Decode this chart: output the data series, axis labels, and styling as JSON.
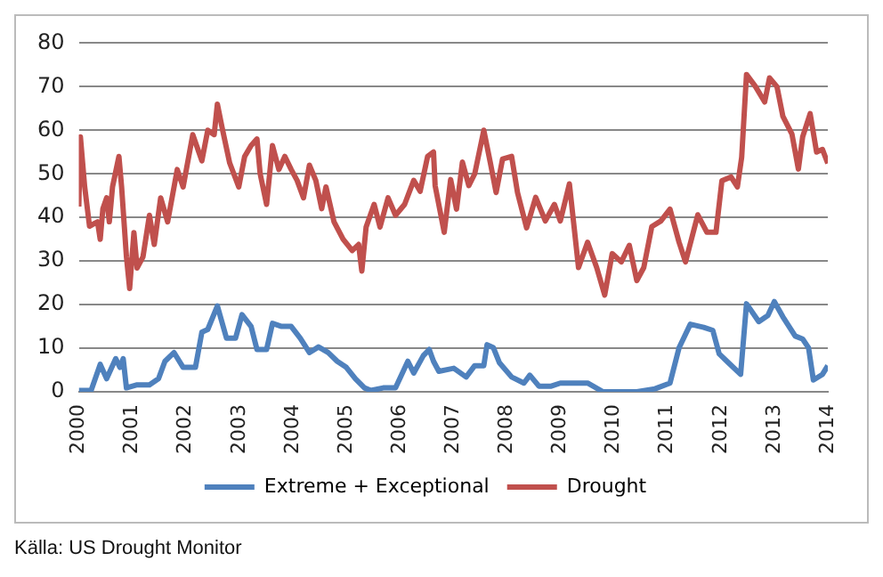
{
  "chart_data": {
    "type": "line",
    "annotations": [
      "Källa: US Drought Monitor"
    ],
    "xlim": [
      2000,
      2014
    ],
    "xticks": [
      2000,
      2001,
      2002,
      2003,
      2004,
      2005,
      2006,
      2007,
      2008,
      2009,
      2010,
      2011,
      2012,
      2013,
      2014
    ],
    "ylim": [
      0,
      80
    ],
    "yticks": [
      0,
      10,
      20,
      30,
      40,
      50,
      60,
      70,
      80
    ],
    "grid": "y",
    "legend": "bottom",
    "marker": "none",
    "line_style": "solid",
    "series": [
      {
        "name": "Extreme + Exceptional",
        "color": "#4f81bd",
        "x": [
          2000.0,
          2000.23,
          2000.4,
          2000.52,
          2000.69,
          2000.77,
          2000.83,
          2000.89,
          2001.09,
          2001.32,
          2001.49,
          2001.61,
          2001.78,
          2001.95,
          2002.18,
          2002.3,
          2002.41,
          2002.59,
          2002.76,
          2002.93,
          2003.05,
          2003.22,
          2003.33,
          2003.51,
          2003.62,
          2003.79,
          2003.97,
          2004.14,
          2004.31,
          2004.48,
          2004.66,
          2004.83,
          2005.0,
          2005.17,
          2005.34,
          2005.46,
          2005.69,
          2005.92,
          2006.15,
          2006.26,
          2006.44,
          2006.55,
          2006.63,
          2006.73,
          2007.01,
          2007.24,
          2007.4,
          2007.57,
          2007.63,
          2007.75,
          2007.86,
          2008.09,
          2008.32,
          2008.43,
          2008.6,
          2008.83,
          2009.0,
          2009.29,
          2009.51,
          2009.8,
          2010.43,
          2010.77,
          2011.05,
          2011.22,
          2011.43,
          2011.68,
          2011.85,
          2011.97,
          2012.14,
          2012.37,
          2012.48,
          2012.71,
          2012.88,
          2013.0,
          2013.16,
          2013.39,
          2013.53,
          2013.64,
          2013.73,
          2013.9,
          2014.0
        ],
        "values": [
          0.3,
          0.3,
          6.3,
          3,
          7.6,
          5.6,
          7.6,
          0.9,
          1.6,
          1.6,
          3,
          7,
          9,
          5.6,
          5.6,
          13.7,
          14.3,
          19.7,
          12.3,
          12.3,
          17.7,
          15,
          9.7,
          9.7,
          15.7,
          15,
          15,
          12.3,
          9,
          10.3,
          9,
          7,
          5.6,
          3,
          0.9,
          0.3,
          0.9,
          0.9,
          7,
          4.3,
          8.3,
          9.7,
          7,
          4.7,
          5.4,
          3.4,
          6,
          6,
          10.8,
          10.1,
          6.7,
          3.4,
          2,
          3.8,
          1.3,
          1.3,
          2,
          2,
          2,
          0,
          0,
          0.7,
          2,
          10.1,
          15.5,
          14.8,
          14.1,
          8.7,
          6.7,
          4,
          20.2,
          16.1,
          17.5,
          20.7,
          17.2,
          12.8,
          12.1,
          10.1,
          2.7,
          4,
          6
        ]
      },
      {
        "name": "Drought",
        "color": "#c0504d",
        "x": [
          2000.0,
          2000.03,
          2000.11,
          2000.2,
          2000.35,
          2000.4,
          2000.45,
          2000.52,
          2000.57,
          2000.63,
          2000.75,
          2000.8,
          2000.89,
          2000.95,
          2001.03,
          2001.09,
          2001.2,
          2001.32,
          2001.41,
          2001.53,
          2001.66,
          2001.78,
          2001.84,
          2001.95,
          2002.13,
          2002.3,
          2002.41,
          2002.53,
          2002.59,
          2002.68,
          2002.82,
          2002.99,
          2003.1,
          2003.22,
          2003.33,
          2003.39,
          2003.51,
          2003.62,
          2003.74,
          2003.85,
          2003.97,
          2004.08,
          2004.2,
          2004.31,
          2004.43,
          2004.54,
          2004.62,
          2004.77,
          2004.94,
          2005.11,
          2005.23,
          2005.29,
          2005.37,
          2005.52,
          2005.63,
          2005.78,
          2005.92,
          2006.09,
          2006.26,
          2006.38,
          2006.52,
          2006.63,
          2006.66,
          2006.83,
          2006.95,
          2007.06,
          2007.17,
          2007.29,
          2007.4,
          2007.57,
          2007.69,
          2007.8,
          2007.92,
          2008.09,
          2008.2,
          2008.37,
          2008.54,
          2008.72,
          2008.89,
          2009.0,
          2009.17,
          2009.34,
          2009.51,
          2009.68,
          2009.83,
          2009.97,
          2010.14,
          2010.29,
          2010.43,
          2010.56,
          2010.71,
          2010.88,
          2011.05,
          2011.22,
          2011.34,
          2011.57,
          2011.74,
          2011.91,
          2012.02,
          2012.19,
          2012.31,
          2012.39,
          2012.48,
          2012.65,
          2012.82,
          2012.91,
          2013.05,
          2013.16,
          2013.33,
          2013.45,
          2013.53,
          2013.67,
          2013.79,
          2013.9,
          2014.0
        ],
        "values": [
          42.5,
          58.5,
          47,
          38,
          39,
          35,
          42,
          44.5,
          39,
          47,
          54,
          47,
          31,
          23.7,
          36.5,
          28.4,
          31,
          40.5,
          33.8,
          44.5,
          39,
          47,
          51,
          47,
          59,
          53,
          60,
          59,
          66,
          60.5,
          52.5,
          47,
          54,
          56.5,
          58,
          50,
          43,
          56.5,
          51,
          54,
          51,
          48.5,
          44.5,
          52,
          48.5,
          42,
          47,
          39,
          35,
          32.4,
          33.8,
          27.7,
          37.8,
          43,
          37.8,
          44.5,
          40.5,
          43,
          48.5,
          46,
          54,
          55,
          47.3,
          36.6,
          48.7,
          41.9,
          52.7,
          47.3,
          50,
          60,
          52.7,
          45.7,
          53.4,
          54,
          45.7,
          37.6,
          44.6,
          39.2,
          43,
          39.2,
          47.7,
          28.5,
          34.3,
          28.5,
          22.2,
          31.7,
          29.8,
          33.6,
          25.5,
          28.5,
          37.9,
          39.2,
          41.9,
          34.3,
          29.8,
          40.6,
          36.6,
          36.6,
          48.4,
          49.3,
          47,
          53.8,
          72.8,
          70,
          66.5,
          72,
          70,
          63.2,
          59.1,
          51.1,
          58.5,
          63.8,
          55,
          55.6,
          52.4
        ]
      }
    ]
  }
}
